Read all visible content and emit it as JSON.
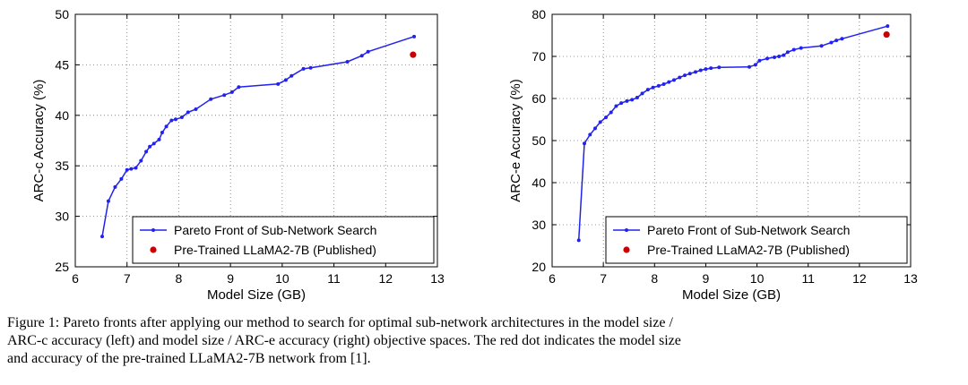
{
  "chart_data": [
    {
      "type": "line",
      "xlabel": "Model Size (GB)",
      "ylabel": "ARC-c Accuracy (%)",
      "xlim": [
        6,
        13
      ],
      "ylim": [
        25,
        50
      ],
      "xticks": [
        6,
        7,
        8,
        9,
        10,
        11,
        12,
        13
      ],
      "yticks": [
        25,
        30,
        35,
        40,
        45,
        50
      ],
      "grid": true,
      "legend_position": "bottom-right",
      "series": [
        {
          "name": "Pareto Front of Sub-Network Search",
          "color": "#2222ee",
          "style": "line-with-dots",
          "x": [
            6.52,
            6.64,
            6.77,
            6.89,
            7.0,
            7.08,
            7.17,
            7.27,
            7.37,
            7.44,
            7.52,
            7.62,
            7.68,
            7.76,
            7.86,
            7.94,
            8.06,
            8.18,
            8.33,
            8.62,
            8.88,
            9.03,
            9.16,
            9.92,
            10.07,
            10.18,
            10.41,
            10.55,
            11.26,
            11.54,
            11.66,
            12.55
          ],
          "y": [
            28.0,
            31.5,
            32.9,
            33.7,
            34.6,
            34.7,
            34.8,
            35.5,
            36.4,
            36.9,
            37.2,
            37.6,
            38.3,
            38.9,
            39.5,
            39.6,
            39.8,
            40.3,
            40.6,
            41.6,
            42.0,
            42.3,
            42.8,
            43.1,
            43.5,
            43.9,
            44.6,
            44.7,
            45.3,
            45.9,
            46.3,
            47.8
          ]
        },
        {
          "name": "Pre-Trained LLaMA2-7B (Published)",
          "color": "#cc0000",
          "style": "dot",
          "x": [
            12.53
          ],
          "y": [
            46.0
          ]
        }
      ]
    },
    {
      "type": "line",
      "xlabel": "Model Size (GB)",
      "ylabel": "ARC-e Accuracy (%)",
      "xlim": [
        6,
        13
      ],
      "ylim": [
        20,
        80
      ],
      "xticks": [
        6,
        7,
        8,
        9,
        10,
        11,
        12,
        13
      ],
      "yticks": [
        20,
        30,
        40,
        50,
        60,
        70,
        80
      ],
      "grid": true,
      "legend_position": "bottom-right",
      "series": [
        {
          "name": "Pareto Front of Sub-Network Search",
          "color": "#2222ee",
          "style": "line-with-dots",
          "x": [
            6.52,
            6.63,
            6.74,
            6.84,
            6.94,
            7.05,
            7.15,
            7.25,
            7.35,
            7.46,
            7.56,
            7.66,
            7.76,
            7.87,
            7.97,
            8.08,
            8.18,
            8.28,
            8.38,
            8.49,
            8.59,
            8.69,
            8.8,
            8.9,
            9.0,
            9.1,
            9.26,
            9.85,
            9.97,
            10.05,
            10.2,
            10.34,
            10.43,
            10.52,
            10.6,
            10.72,
            10.86,
            11.26,
            11.45,
            11.55,
            11.66,
            12.55
          ],
          "y": [
            26.3,
            49.3,
            51.4,
            52.9,
            54.4,
            55.5,
            56.7,
            58.2,
            58.9,
            59.4,
            59.7,
            60.2,
            61.2,
            62.1,
            62.6,
            63.0,
            63.4,
            63.9,
            64.4,
            65.0,
            65.5,
            65.9,
            66.3,
            66.7,
            67.0,
            67.2,
            67.4,
            67.5,
            68.0,
            69.0,
            69.5,
            69.8,
            70.0,
            70.3,
            71.0,
            71.6,
            72.0,
            72.5,
            73.3,
            73.8,
            74.2,
            77.2
          ]
        },
        {
          "name": "Pre-Trained LLaMA2-7B (Published)",
          "color": "#cc0000",
          "style": "dot",
          "x": [
            12.53
          ],
          "y": [
            75.2
          ]
        }
      ]
    }
  ],
  "caption": {
    "line1": "Figure 1: Pareto fronts after applying our method to search for optimal sub-network architectures in the model size /",
    "line2": "ARC-c accuracy (left) and model size / ARC-e accuracy (right) objective spaces. The red dot indicates the model size",
    "line3": "and accuracy of the pre-trained LLaMA2-7B network from [1]."
  }
}
